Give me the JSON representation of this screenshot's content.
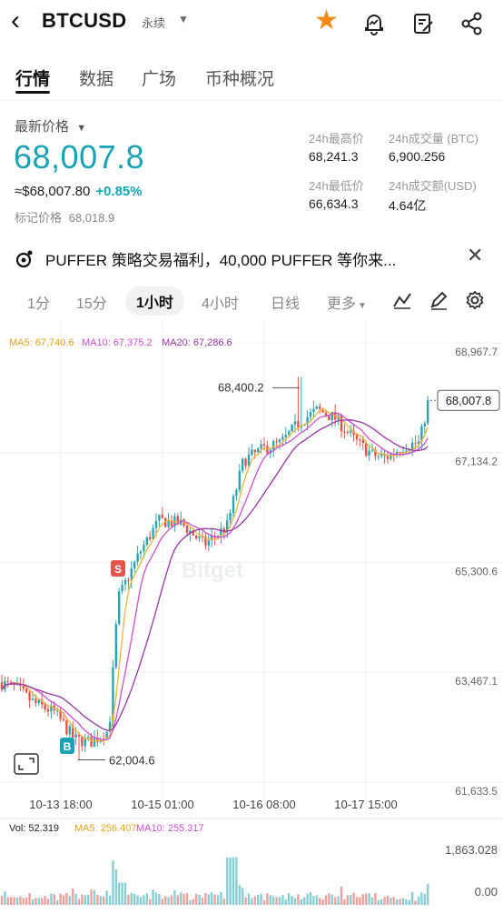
{
  "header": {
    "symbol": "BTCUSD",
    "contract_type": "永续",
    "icons": [
      "back-icon",
      "star-icon",
      "price-alert-icon",
      "edit-note-icon",
      "share-icon"
    ]
  },
  "tabs": [
    {
      "label": "行情",
      "active": true
    },
    {
      "label": "数据",
      "active": false
    },
    {
      "label": "广场",
      "active": false
    },
    {
      "label": "币种概况",
      "active": false
    }
  ],
  "price": {
    "label": "最新价格",
    "last": "68,007.8",
    "usd_equiv": "≈$68,007.80",
    "change": "+0.85%",
    "mark_label": "标记价格",
    "mark_value": "68,018.9"
  },
  "stats": {
    "high_label": "24h最高价",
    "high": "68,241.3",
    "vol_btc_label": "24h成交量 (BTC)",
    "vol_btc": "6,900.256",
    "low_label": "24h最低价",
    "low": "66,634.3",
    "vol_usd_label": "24h成交额(USD)",
    "vol_usd": "4.64亿"
  },
  "promo": {
    "text": "PUFFER 策略交易福利，40,000 PUFFER 等你来..."
  },
  "intervals": [
    {
      "label": "1分",
      "active": false
    },
    {
      "label": "15分",
      "active": false
    },
    {
      "label": "1小时",
      "active": true
    },
    {
      "label": "4小时",
      "active": false
    },
    {
      "label": "日线",
      "active": false
    },
    {
      "label": "更多",
      "active": false
    }
  ],
  "chart_data": {
    "type": "candlestick",
    "ma_legend": {
      "ma5": "MA5: 67,740.6",
      "ma10": "MA10: 67,375.2",
      "ma20": "MA20: 67,286.6"
    },
    "y_ticks": [
      "68,967.7",
      "67,134.2",
      "65,300.6",
      "63,467.1",
      "61,633.5"
    ],
    "y_tick_values": [
      68967.7,
      67134.2,
      65300.6,
      63467.1,
      61633.5
    ],
    "ylim": [
      61633.5,
      68967.7
    ],
    "x_ticks": [
      "10-13 18:00",
      "10-15 01:00",
      "10-16 08:00",
      "10-17 15:00"
    ],
    "high_annotation": "68,400.2",
    "high_value": 68400.2,
    "low_annotation": "62,004.6",
    "low_value": 62004.6,
    "last_price_tag": "68,007.8",
    "last_value": 68007.8,
    "signals": [
      {
        "label": "S",
        "color": "#e5534b"
      },
      {
        "label": "B",
        "color": "#18a3b6"
      }
    ],
    "watermark": "Bitget",
    "up_color": "#2aa6b3",
    "down_color": "#e5534b",
    "ma_colors": {
      "ma5": "#f0b43a",
      "ma10": "#d24fd0",
      "ma20": "#9a36a8"
    },
    "volume": {
      "vol_label": "Vol: 52.319",
      "ma5_label": "MA5: 256.407",
      "ma10_label": "MA10: 255.317",
      "y_ticks": [
        "1,863.028",
        "0.00"
      ],
      "max": 1863.028
    }
  }
}
